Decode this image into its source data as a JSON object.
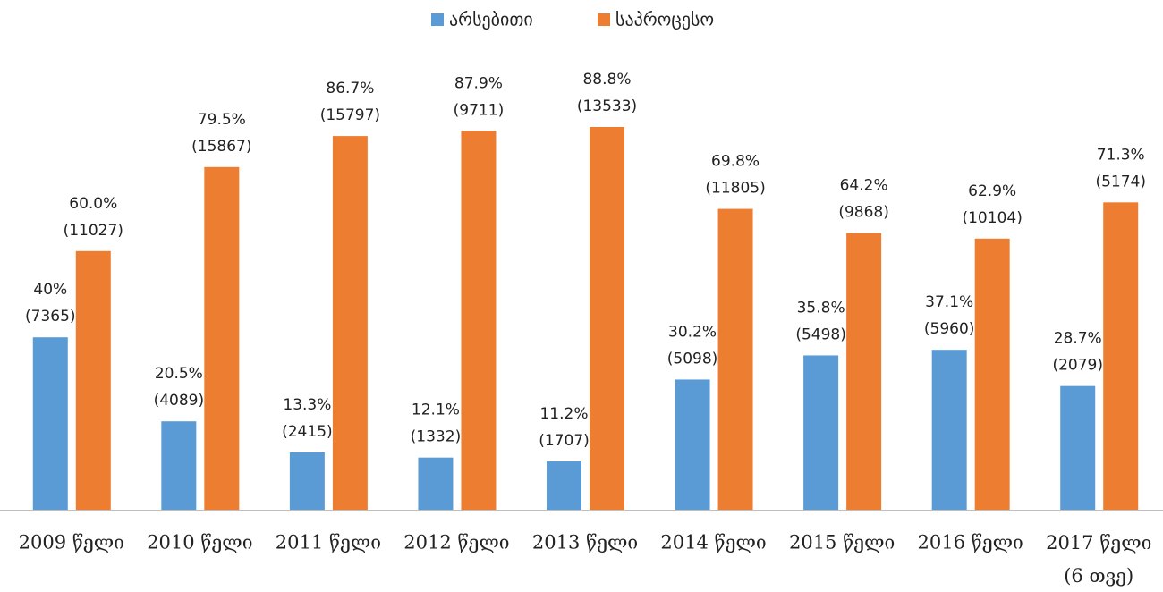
{
  "chart_data": {
    "type": "bar",
    "categories": [
      "2009 წელი",
      "2010 წელი",
      "2011 წელი",
      "2012 წელი",
      "2013 წელი",
      "2014 წელი",
      "2015 წელი",
      "2016 წელი",
      "2017 წელი\n(6 თვე)"
    ],
    "series": [
      {
        "name": "არსებითი",
        "color": "#5b9bd5",
        "values": [
          40,
          20.5,
          13.3,
          12.1,
          11.2,
          30.2,
          35.8,
          37.1,
          28.7
        ],
        "value_labels": [
          "40%",
          "20.5%",
          "13.3%",
          "12.1%",
          "11.2%",
          "30.2%",
          "35.8%",
          "37.1%",
          "28.7%"
        ],
        "count_labels": [
          "(7365)",
          "(4089)",
          "(2415)",
          "(1332)",
          "(1707)",
          "(5098)",
          "(5498)",
          "(5960)",
          "(2079)"
        ]
      },
      {
        "name": "საპროცესო",
        "color": "#ed7d31",
        "values": [
          60,
          79.5,
          86.7,
          87.9,
          88.8,
          69.8,
          64.2,
          62.9,
          71.3
        ],
        "value_labels": [
          "60.0%",
          "79.5%",
          "86.7%",
          "87.9%",
          "88.8%",
          "69.8%",
          "64.2%",
          "62.9%",
          "71.3%"
        ],
        "count_labels": [
          "(11027)",
          "(15867)",
          "(15797)",
          "(9711)",
          "(13533)",
          "(11805)",
          "(9868)",
          "(10104)",
          "(5174)"
        ]
      }
    ],
    "ylim": [
      0,
      100
    ],
    "legend": "top"
  }
}
